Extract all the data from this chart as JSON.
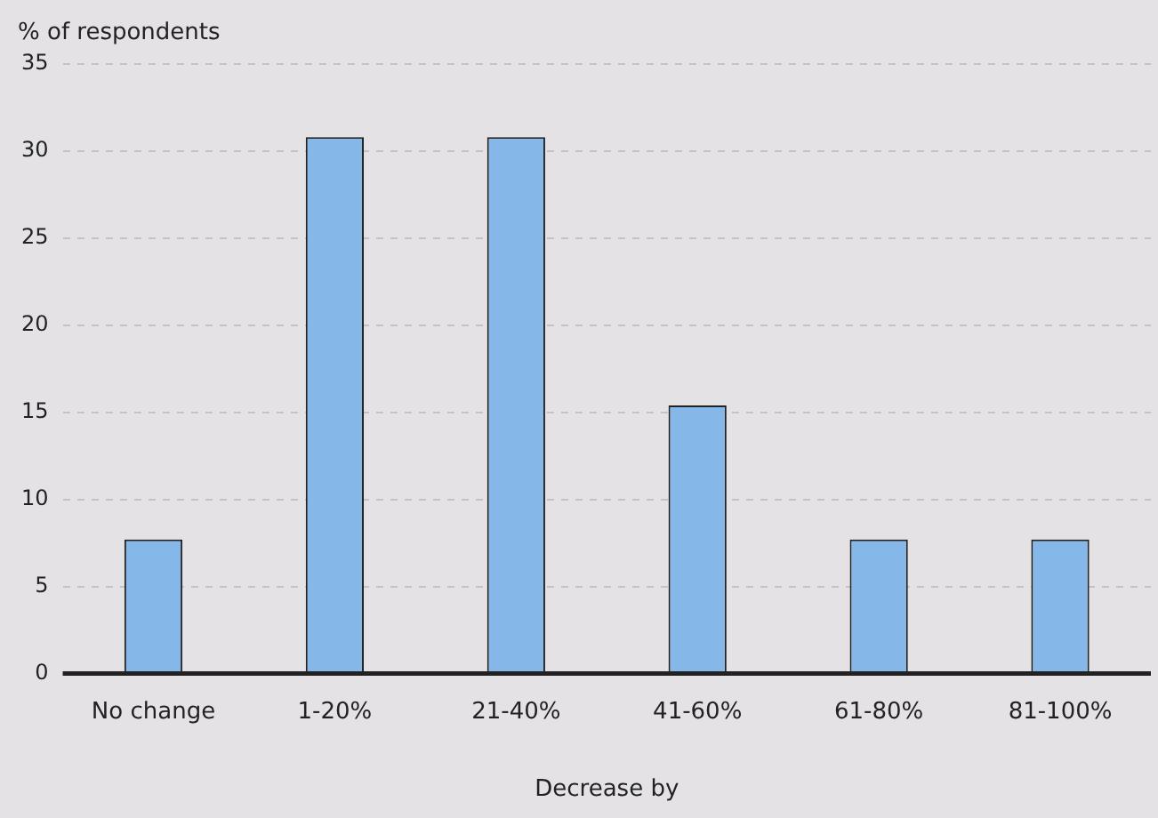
{
  "chart_data": {
    "type": "bar",
    "ylabel": "% of respondents",
    "xlabel": "Decrease by",
    "categories": [
      "No change",
      "1-20%",
      "21-40%",
      "41-60%",
      "61-80%",
      "81-100%"
    ],
    "values": [
      7.7,
      30.8,
      30.8,
      15.4,
      7.7,
      7.7
    ],
    "color": "#85b8e8",
    "ylim": [
      0,
      35
    ],
    "yticks": [
      0,
      5,
      10,
      15,
      20,
      25,
      30,
      35
    ],
    "grid": "y"
  }
}
